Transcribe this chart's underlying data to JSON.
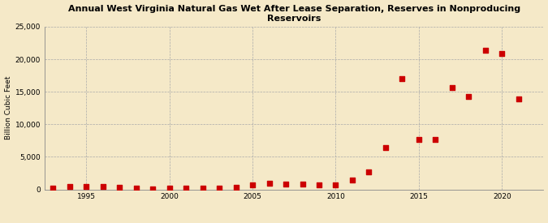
{
  "title": "Annual West Virginia Natural Gas Wet After Lease Separation, Reserves in Nonproducing\nReservoirs",
  "ylabel": "Billion Cubic Feet",
  "background_color": "#f5e9c8",
  "plot_background_color": "#f5e9c8",
  "marker_color": "#cc0000",
  "marker_size": 16,
  "xlim": [
    1992.5,
    2022.5
  ],
  "ylim": [
    0,
    25000
  ],
  "yticks": [
    0,
    5000,
    10000,
    15000,
    20000,
    25000
  ],
  "xticks": [
    1995,
    2000,
    2005,
    2010,
    2015,
    2020
  ],
  "years": [
    1993,
    1994,
    1995,
    1996,
    1997,
    1998,
    1999,
    2000,
    2001,
    2002,
    2003,
    2004,
    2005,
    2006,
    2007,
    2008,
    2009,
    2010,
    2011,
    2012,
    2013,
    2014,
    2015,
    2016,
    2017,
    2018,
    2019,
    2020,
    2021
  ],
  "values": [
    150,
    500,
    500,
    450,
    380,
    220,
    120,
    150,
    150,
    150,
    150,
    300,
    750,
    900,
    850,
    780,
    680,
    750,
    1400,
    2700,
    6400,
    17000,
    7700,
    7700,
    15600,
    14300,
    21400,
    20900,
    13900
  ]
}
